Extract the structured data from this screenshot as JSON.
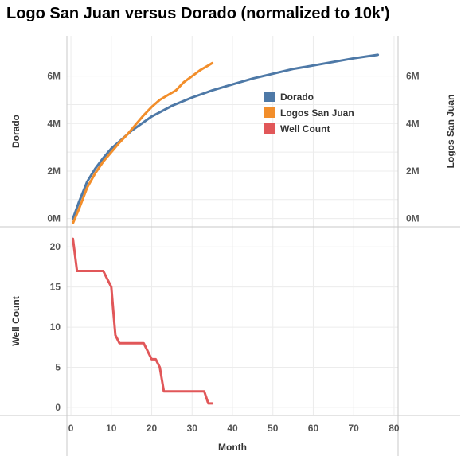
{
  "title": "Logo San Juan versus Dorado (normalized to 10k')",
  "colors": {
    "Dorado": "#4e79a7",
    "Logos San Juan": "#f28e2b",
    "Well Count": "#e15759"
  },
  "chart_data": [
    {
      "type": "line",
      "panel": "top",
      "xlabel": "Month",
      "xlim": [
        -1,
        81
      ],
      "grid": true,
      "legend": "top-right, inside plot",
      "legend_entries": [
        "Dorado",
        "Logos San Juan",
        "Well Count"
      ],
      "left_axis": {
        "label": "Dorado",
        "ylim": [
          -0.35,
          7.7
        ],
        "ticks": [
          0,
          2,
          4,
          6
        ],
        "tick_labels": [
          "0M",
          "2M",
          "4M",
          "6M"
        ]
      },
      "right_axis": {
        "label": "Logos San Juan",
        "ylim": [
          -0.35,
          7.7
        ],
        "ticks": [
          0,
          2,
          4,
          6
        ],
        "tick_labels": [
          "0M",
          "2M",
          "4M",
          "6M"
        ]
      },
      "series": [
        {
          "name": "Dorado",
          "axis": "left",
          "unit": "M",
          "x": [
            0.5,
            2,
            4,
            6,
            8,
            10,
            12,
            15,
            20,
            25,
            30,
            35,
            40,
            45,
            50,
            55,
            60,
            65,
            70,
            76
          ],
          "y": [
            0.0,
            0.7,
            1.55,
            2.1,
            2.55,
            2.95,
            3.25,
            3.7,
            4.3,
            4.75,
            5.1,
            5.4,
            5.65,
            5.9,
            6.1,
            6.3,
            6.45,
            6.6,
            6.75,
            6.9
          ]
        },
        {
          "name": "Logos San Juan",
          "axis": "right",
          "unit": "M",
          "x": [
            0.5,
            2,
            4,
            6,
            8,
            10,
            12,
            14,
            16,
            18,
            20,
            22,
            24,
            25,
            26,
            28,
            30,
            32,
            34,
            35
          ],
          "y": [
            -0.2,
            0.4,
            1.3,
            1.9,
            2.4,
            2.8,
            3.2,
            3.55,
            3.95,
            4.35,
            4.7,
            5.0,
            5.2,
            5.3,
            5.4,
            5.75,
            6.0,
            6.25,
            6.45,
            6.55
          ]
        }
      ]
    },
    {
      "type": "line",
      "panel": "bottom",
      "xlabel": "Month",
      "xlim": [
        -1,
        81
      ],
      "ylabel": "Well Count",
      "ylim": [
        -1,
        22.5
      ],
      "yticks": [
        0,
        5,
        10,
        15,
        20
      ],
      "xticks": [
        0,
        10,
        20,
        30,
        40,
        50,
        60,
        70,
        80
      ],
      "grid": true,
      "series": [
        {
          "name": "Well Count",
          "x": [
            0.5,
            1.5,
            8,
            9,
            10,
            10.5,
            11,
            12,
            18,
            19,
            20,
            21,
            22,
            23,
            33,
            34,
            35
          ],
          "y": [
            21,
            17,
            17,
            16,
            15,
            12,
            9,
            8,
            8,
            7,
            6,
            6,
            5,
            2,
            2,
            0.5,
            0.5
          ]
        }
      ]
    }
  ]
}
